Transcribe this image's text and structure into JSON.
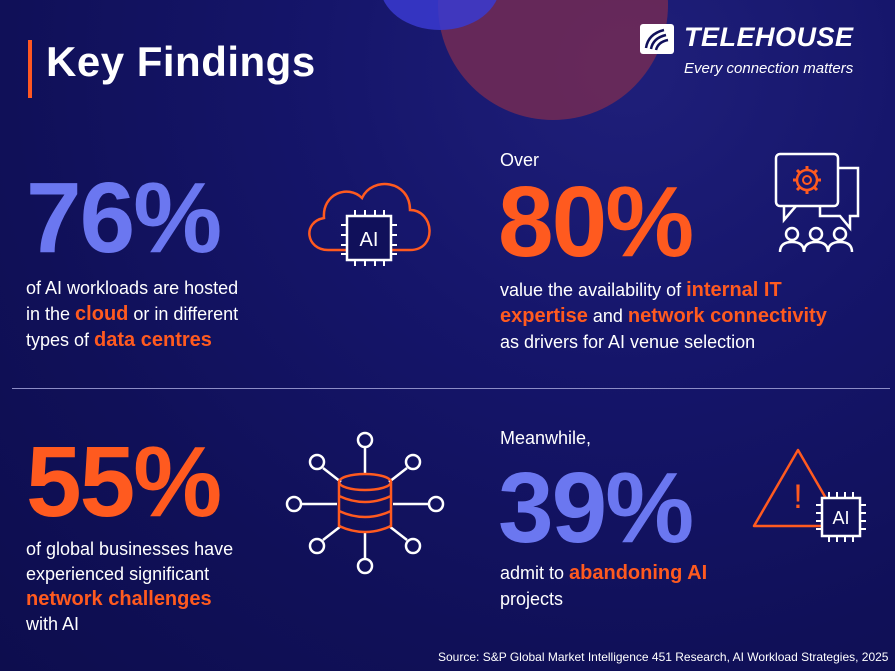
{
  "header": {
    "title": "Key Findings",
    "brand_name": "TELEHOUSE",
    "brand_tagline": "Every connection matters"
  },
  "stats": {
    "cloud": {
      "value": "76%",
      "text_1": "of AI workloads are hosted",
      "text_2a": "in the ",
      "highlight_1": "cloud",
      "text_2b": " or in different",
      "text_3a": "types of ",
      "highlight_2": "data centres",
      "icon_label": "AI"
    },
    "expertise": {
      "pre": "Over",
      "value": "80%",
      "text_1a": "value the availability of ",
      "highlight_1": "internal IT",
      "highlight_2": "expertise",
      "text_2a": " and ",
      "highlight_3": "network connectivity",
      "text_3": "as drivers for AI venue selection"
    },
    "network": {
      "value": "55%",
      "text_1": "of global businesses have",
      "text_2": "experienced significant",
      "highlight_1": "network challenges",
      "text_4": "with AI"
    },
    "abandon": {
      "pre": "Meanwhile,",
      "value": "39%",
      "text_1a": "admit to ",
      "highlight_1": "abandoning AI",
      "text_2": "projects",
      "icon_label": "AI",
      "warning_mark": "!"
    }
  },
  "footer": {
    "source": "Source: S&P Global Market Intelligence 451 Research, AI Workload Strategies, 2025"
  },
  "colors": {
    "background": "#10105a",
    "accent_orange": "#ff5a1f",
    "accent_blue": "#6b77f0",
    "text": "#ffffff"
  }
}
